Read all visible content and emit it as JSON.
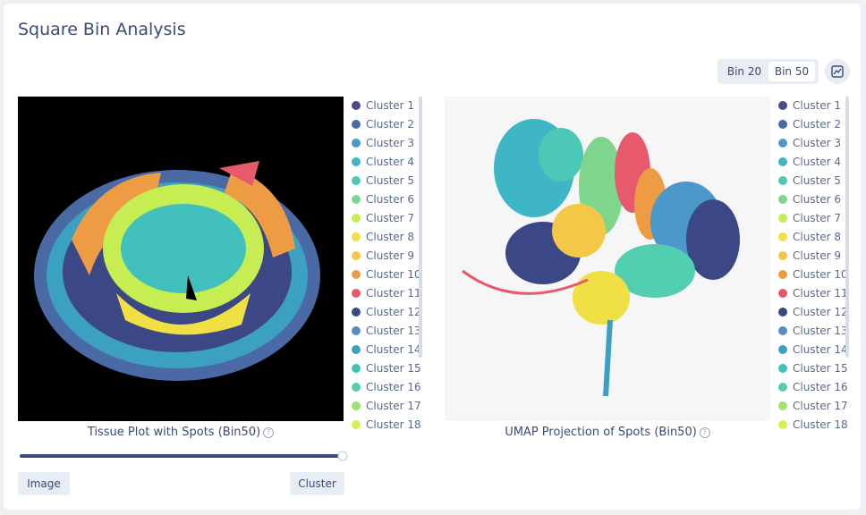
{
  "header": {
    "title": "Square Bin Analysis"
  },
  "bin_options": [
    "Bin 20",
    "Bin 50"
  ],
  "clusters": [
    {
      "name": "Cluster 1",
      "color": "#4a4c8a"
    },
    {
      "name": "Cluster 2",
      "color": "#4a6aa6"
    },
    {
      "name": "Cluster 3",
      "color": "#4c98c8"
    },
    {
      "name": "Cluster 4",
      "color": "#3fb6c6"
    },
    {
      "name": "Cluster 5",
      "color": "#4cc8b6"
    },
    {
      "name": "Cluster 6",
      "color": "#7ed68c"
    },
    {
      "name": "Cluster 7",
      "color": "#c6ee52"
    },
    {
      "name": "Cluster 8",
      "color": "#f0e044"
    },
    {
      "name": "Cluster 9",
      "color": "#f4c846"
    },
    {
      "name": "Cluster 10",
      "color": "#ee9c44"
    },
    {
      "name": "Cluster 11",
      "color": "#e65a6c"
    },
    {
      "name": "Cluster 12",
      "color": "#3c4886"
    },
    {
      "name": "Cluster 13",
      "color": "#5a8ac6"
    },
    {
      "name": "Cluster 14",
      "color": "#3ca0c0"
    },
    {
      "name": "Cluster 15",
      "color": "#42c0bc"
    },
    {
      "name": "Cluster 16",
      "color": "#52ceb0"
    },
    {
      "name": "Cluster 17",
      "color": "#a2e070"
    },
    {
      "name": "Cluster 18",
      "color": "#d6f052"
    }
  ],
  "panels": [
    {
      "caption": "Tissue Plot with Spots (Bin50)"
    },
    {
      "caption": "UMAP Projection of Spots (Bin50)"
    }
  ],
  "buttons": [
    "Image",
    "Cluster"
  ]
}
